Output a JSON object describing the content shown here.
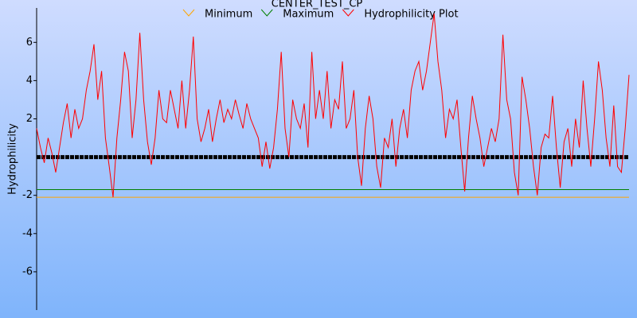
{
  "chart_data": {
    "type": "line",
    "title": "CENTER_TEST_CP",
    "y_label": "Hydrophilicity",
    "ylim": [
      -8,
      7.8
    ],
    "yticks": [
      -6,
      -4,
      -2,
      2,
      4,
      6
    ],
    "series": [
      {
        "name": "Minimum",
        "color": "#ffa500",
        "level": -2.1
      },
      {
        "name": "Maximum",
        "color": "#008000",
        "level": -1.7
      },
      {
        "name": "Hydrophilicity Plot",
        "color": "#ff0000",
        "values": [
          1.5,
          0.5,
          -0.3,
          1.0,
          0.2,
          -0.8,
          0.5,
          1.8,
          2.8,
          1.0,
          2.5,
          1.5,
          2.0,
          3.5,
          4.5,
          5.9,
          3,
          4.5,
          1,
          -0.5,
          -2.1,
          1,
          3,
          5.5,
          4.5,
          1.0,
          3,
          6.5,
          3,
          0.8,
          -0.4,
          1,
          3.5,
          2,
          1.8,
          3.5,
          2.5,
          1.5,
          4.0,
          1.5,
          3.5,
          6.3,
          2,
          0.8,
          1.5,
          2.5,
          0.8,
          2,
          3,
          1.8,
          2.5,
          2,
          3.0,
          2.2,
          1.5,
          2.8,
          2.0,
          1.5,
          1.0,
          -0.5,
          0.8,
          -0.6,
          0.5,
          2.5,
          5.5,
          1.5,
          0,
          3,
          2,
          1.5,
          2.8,
          0.5,
          5.5,
          2,
          3.5,
          2,
          4.5,
          1.5,
          3,
          2.5,
          5,
          1.5,
          2,
          3.5,
          0,
          -1.5,
          1.5,
          3.2,
          2.0,
          -0.5,
          -1.6,
          1,
          0.5,
          2,
          -0.5,
          1.5,
          2.5,
          1,
          3.5,
          4.5,
          5,
          3.5,
          4.5,
          6,
          7.5,
          5,
          3.5,
          1,
          2.5,
          2,
          3.0,
          0.5,
          -1.8,
          1,
          3.2,
          2,
          1,
          -0.5,
          0.5,
          1.5,
          0.8,
          2,
          6.4,
          3,
          2,
          -0.8,
          -2,
          4.2,
          3,
          1.5,
          -0.5,
          -2,
          0.5,
          1.2,
          1.0,
          3.2,
          0.5,
          -1.6,
          0.8,
          1.5,
          -0.5,
          2,
          0.5,
          4,
          1.5,
          -0.5,
          2,
          5.0,
          3.5,
          1,
          -0.5,
          2.7,
          -0.5,
          -0.8,
          1.5,
          4.3
        ]
      }
    ]
  }
}
